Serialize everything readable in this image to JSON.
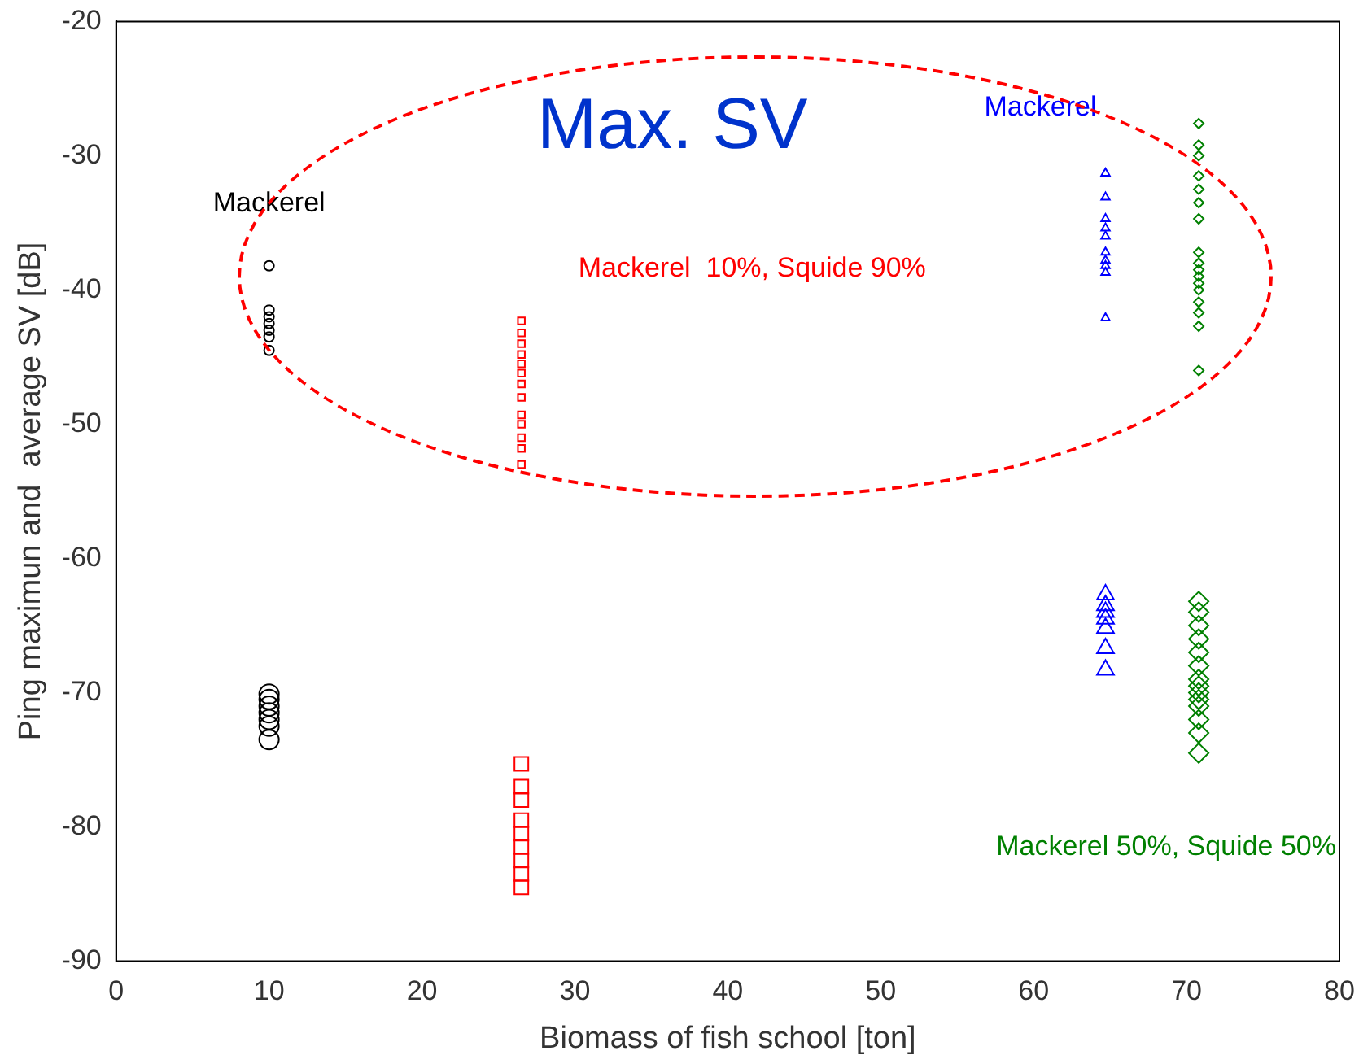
{
  "chart_data": {
    "type": "scatter",
    "xlabel": "Biomass of fish school [ton]",
    "ylabel": "Ping maximun and  average SV [dB]",
    "xlim": [
      0,
      80
    ],
    "xticks": [
      0,
      10,
      20,
      30,
      40,
      50,
      60,
      70,
      80
    ],
    "ylim": [
      -90,
      -20
    ],
    "yticks": [
      -90,
      -80,
      -70,
      -60,
      -50,
      -40,
      -30,
      -20
    ],
    "grid": false,
    "legend": false,
    "annotations": [
      "Max. SV"
    ],
    "series": [
      {
        "name": "Mackerel",
        "color": "#000000",
        "marker": "circle",
        "x": [
          10,
          10,
          10,
          10,
          10,
          10,
          10
        ],
        "values": [
          -38.2,
          -41.5,
          -42,
          -42.5,
          -43,
          -43.5,
          -44.5
        ]
      },
      {
        "name": "Mackerel  10%, Squide 90%",
        "color": "#ff0000",
        "marker": "square",
        "x": [
          26.5,
          26.5,
          26.5,
          26.5,
          26.5,
          26.5,
          26.5,
          26.5,
          26.5,
          26.5,
          26.5,
          26.5,
          26.5
        ],
        "values": [
          -42.3,
          -43.2,
          -44,
          -44.8,
          -45.5,
          -46.2,
          -47,
          -48,
          -49.3,
          -50,
          -51,
          -51.8,
          -53
        ]
      },
      {
        "name": "Mackerel",
        "color": "#0000ff",
        "marker": "triangle",
        "x": [
          64.7,
          64.7,
          64.7,
          64.7,
          64.7,
          64.7,
          64.7,
          64.7,
          64.7,
          64.7
        ],
        "values": [
          -31.3,
          -33.1,
          -34.7,
          -35.4,
          -36,
          -37.2,
          -37.8,
          -38.2,
          -38.7,
          -42.1
        ]
      },
      {
        "color": "#008000",
        "marker": "diamond",
        "x": [
          70.8,
          70.8,
          70.8,
          70.8,
          70.8,
          70.8,
          70.8,
          70.8,
          70.8,
          70.8,
          70.8,
          70.8,
          70.8,
          70.8,
          70.8,
          70.8,
          70.8
        ],
        "values": [
          -27.6,
          -29.2,
          -30,
          -31.5,
          -32.5,
          -33.5,
          -34.7,
          -37.2,
          -38,
          -38.5,
          -39,
          -39.5,
          -40,
          -40.9,
          -41.7,
          -42.7,
          -46
        ]
      },
      {
        "color": "#000000",
        "marker": "circle",
        "x": [
          10,
          10,
          10,
          10,
          10,
          10,
          10
        ],
        "values": [
          -70.1,
          -70.5,
          -71,
          -71.5,
          -72,
          -72.5,
          -73.5
        ]
      },
      {
        "color": "#ff0000",
        "marker": "square",
        "x": [
          26.5,
          26.5,
          26.5,
          26.5,
          26.5,
          26.5,
          26.5,
          26.5,
          26.5
        ],
        "values": [
          -75.3,
          -77,
          -78,
          -79.5,
          -80.5,
          -81.5,
          -82.5,
          -83.5,
          -84.5
        ]
      },
      {
        "color": "#0000ff",
        "marker": "triangle",
        "x": [
          64.7,
          64.7,
          64.7,
          64.7,
          64.7,
          64.7,
          64.7
        ],
        "values": [
          -62.7,
          -63.5,
          -64,
          -64.5,
          -65.2,
          -66.7,
          -68.3
        ]
      },
      {
        "name": "Mackerel 50%, Squide 50%",
        "color": "#008000",
        "marker": "diamond",
        "x": [
          70.8,
          70.8,
          70.8,
          70.8,
          70.8,
          70.8,
          70.8,
          70.8,
          70.8,
          70.8,
          70.8,
          70.8,
          70.8,
          70.8
        ],
        "values": [
          -63.2,
          -64,
          -65,
          -66,
          -67,
          -68,
          -69,
          -69.5,
          -70,
          -70.5,
          -71,
          -72,
          -73,
          -74.5
        ]
      }
    ]
  }
}
